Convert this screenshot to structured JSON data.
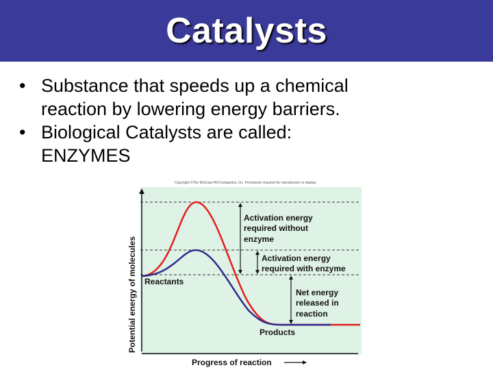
{
  "title": "Catalysts",
  "bullets": [
    {
      "line1": "Substance that speeds up a chemical",
      "line2": "reaction by lowering energy barriers."
    },
    {
      "line1": "Biological Catalysts are called:",
      "line2": "ENZYMES"
    }
  ],
  "bullet_glyph": "•",
  "diagram": {
    "copyright": "Copyright ©The McGraw-Hill Companies, Inc. Permission required for reproduction or display.",
    "y_axis_label": "Potential energy of molecules",
    "x_axis_label": "Progress of reaction",
    "labels": {
      "reactants": "Reactants",
      "products": "Products",
      "activation_without": [
        "Activation energy",
        "required without",
        "enzyme"
      ],
      "activation_with": [
        "Activation energy",
        "required with enzyme"
      ],
      "net_energy": [
        "Net energy",
        "released in",
        "reaction"
      ]
    },
    "colors": {
      "background": "#dff2e6",
      "without_enzyme": "#e31d1d",
      "with_enzyme": "#2c2c8c",
      "axis": "#111111",
      "dashed": "#333333"
    }
  }
}
